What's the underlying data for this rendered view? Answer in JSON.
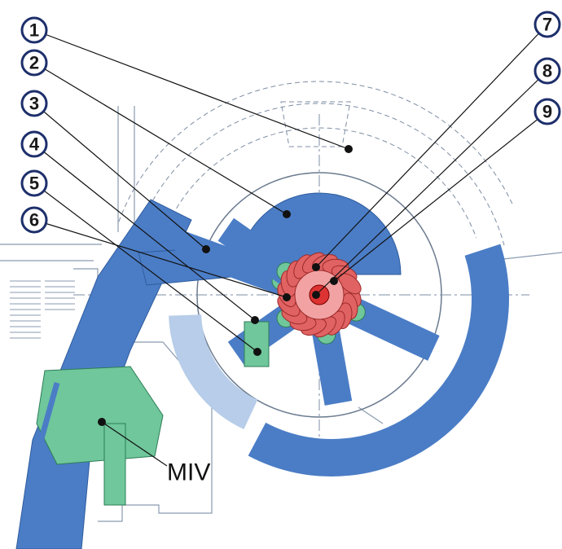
{
  "callouts": [
    "1",
    "2",
    "3",
    "4",
    "5",
    "6",
    "7",
    "8",
    "9"
  ],
  "valve_label": "MIV"
}
